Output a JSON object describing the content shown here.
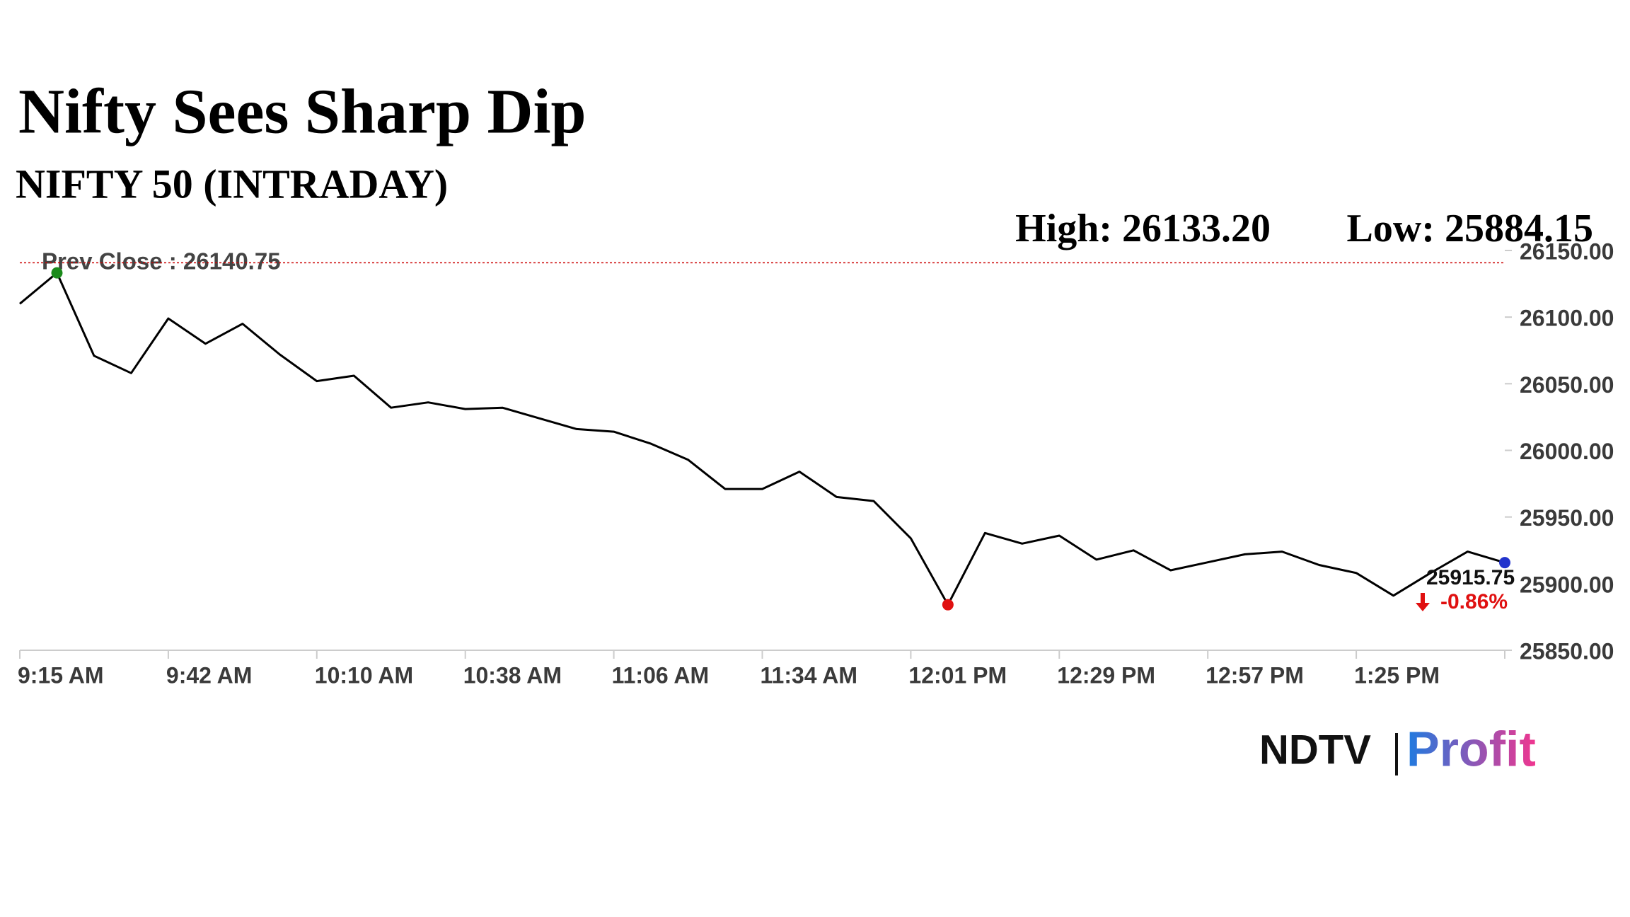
{
  "chart_data": {
    "type": "line",
    "title": "Nifty Sees Sharp Dip",
    "subtitle": "NIFTY 50 (INTRADAY)",
    "high": {
      "value": 26133.2,
      "label": "High: 26133.20"
    },
    "low": {
      "value": 25884.15,
      "label": "Low: 25884.15"
    },
    "prev_close": {
      "value": 26140.75,
      "label": "Prev Close : 26140.75"
    },
    "change": {
      "value": -0.86,
      "label": "-0.86%"
    },
    "categories": [
      "9:15 AM",
      null,
      null,
      null,
      "9:42 AM",
      null,
      null,
      null,
      "10:10 AM",
      null,
      null,
      null,
      "10:38 AM",
      null,
      null,
      null,
      "11:06 AM",
      null,
      null,
      null,
      "11:34 AM",
      null,
      null,
      null,
      "12:01 PM",
      null,
      null,
      null,
      "12:29 PM",
      null,
      null,
      null,
      "12:57 PM",
      null,
      null,
      null,
      "1:25 PM",
      null,
      null,
      null,
      null
    ],
    "series": [
      {
        "name": "NIFTY 50",
        "color": "#000000",
        "values": [
          26110,
          26133.2,
          26071,
          26058,
          26099,
          26080,
          26095,
          26072,
          26052,
          26056,
          26032,
          26036,
          26031,
          26032,
          26024,
          26016,
          26014,
          26005,
          25993,
          25971,
          25971,
          25984,
          25965,
          25962,
          25934,
          25884.15,
          25938,
          25930,
          25936,
          25918,
          25925,
          25910,
          25916,
          25922,
          25924,
          25914,
          25908,
          25891,
          25908,
          25924,
          25915.75
        ]
      }
    ],
    "ylim": [
      25850,
      26150
    ],
    "yticks": [
      {
        "value": 25850,
        "label": "25850.00"
      },
      {
        "value": 25900,
        "label": "25900.00"
      },
      {
        "value": 25950,
        "label": "25950.00"
      },
      {
        "value": 26000,
        "label": "26000.00"
      },
      {
        "value": 26050,
        "label": "26050.00"
      },
      {
        "value": 26100,
        "label": "26100.00"
      },
      {
        "value": 26150,
        "label": "26150.00"
      }
    ],
    "grid": false,
    "high_color": "#1a8a1a",
    "low_color": "#e01010",
    "last_color": "#2233cc",
    "prev_close_color": "#cc0000"
  },
  "logo": {
    "brand": "NDTV",
    "product": "Profit"
  }
}
